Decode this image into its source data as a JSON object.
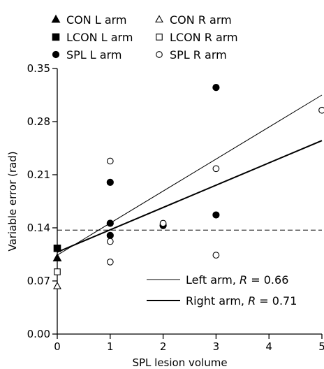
{
  "chart_data": {
    "type": "scatter",
    "title": "",
    "xlabel": "SPL lesion volume",
    "ylabel": "Variable error (rad)",
    "xlim": [
      0,
      5
    ],
    "ylim": [
      0,
      0.35
    ],
    "x_ticks": [
      0,
      1,
      2,
      3,
      4,
      5
    ],
    "y_ticks": [
      "0.00",
      "0.07",
      "0.14",
      "0.21",
      "0.28",
      "0.35"
    ],
    "grid": false,
    "legend_position": "top",
    "series": [
      {
        "name": "CON L arm",
        "marker": "filled-triangle",
        "points": [
          [
            0,
            0.1
          ]
        ]
      },
      {
        "name": "CON R arm",
        "marker": "open-triangle",
        "points": [
          [
            0,
            0.063
          ]
        ]
      },
      {
        "name": "LCON L arm",
        "marker": "filled-square",
        "points": [
          [
            0,
            0.113
          ]
        ]
      },
      {
        "name": "LCON R arm",
        "marker": "open-square",
        "points": [
          [
            0,
            0.082
          ]
        ]
      },
      {
        "name": "SPL L arm",
        "marker": "filled-circle",
        "points": [
          [
            1,
            0.2
          ],
          [
            1,
            0.146
          ],
          [
            1,
            0.13
          ],
          [
            2,
            0.143
          ],
          [
            3,
            0.325
          ],
          [
            3,
            0.157
          ]
        ]
      },
      {
        "name": "SPL R arm",
        "marker": "open-circle",
        "points": [
          [
            1,
            0.228
          ],
          [
            1,
            0.122
          ],
          [
            1,
            0.095
          ],
          [
            2,
            0.146
          ],
          [
            3,
            0.218
          ],
          [
            3,
            0.104
          ],
          [
            5,
            0.295
          ]
        ]
      }
    ],
    "fit_lines": [
      {
        "label": "Left arm, ",
        "r_text": "R",
        "value_text": " = 0.66",
        "style": "thin",
        "x": [
          0,
          5
        ],
        "y": [
          0.104,
          0.315
        ]
      },
      {
        "label": "Right arm, ",
        "r_text": "R",
        "value_text": " = 0.71",
        "style": "thick",
        "x": [
          0,
          5
        ],
        "y": [
          0.108,
          0.255
        ]
      }
    ],
    "reference_line": {
      "style": "dashed",
      "y": 0.137
    }
  }
}
